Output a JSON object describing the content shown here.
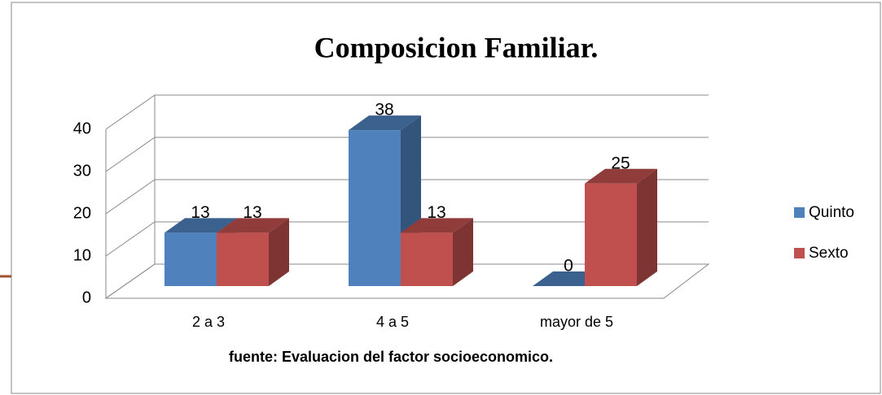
{
  "chart_data": {
    "type": "bar3d",
    "title": "Composicion Familiar.",
    "categories": [
      "2 a 3",
      "4 a 5",
      "mayor de 5"
    ],
    "series": [
      {
        "name": "Quinto",
        "color": "#4f81bd",
        "values": [
          13,
          38,
          0
        ]
      },
      {
        "name": "Sexto",
        "color": "#c0504d",
        "values": [
          13,
          13,
          25
        ]
      }
    ],
    "ylim": [
      0,
      40
    ],
    "yticks": [
      0,
      10,
      20,
      30,
      40
    ],
    "grid": true,
    "legend": "right",
    "note": "fuente: Evaluacion del factor socioeconomico."
  }
}
